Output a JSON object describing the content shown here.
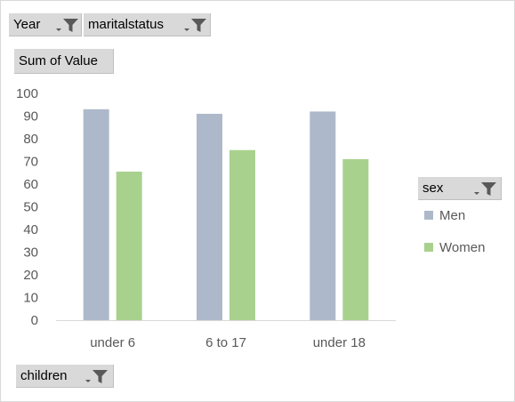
{
  "filters": {
    "year": {
      "label": "Year"
    },
    "marital": {
      "label": "maritalstatus"
    },
    "values": {
      "label": "Sum of Value"
    },
    "legend_field": {
      "label": "sex"
    },
    "axis_field": {
      "label": "children"
    }
  },
  "colors": {
    "Men": "#adb9ca",
    "Women": "#a9d18e",
    "grid": "#d9d9d9",
    "button": "#d9d9d9",
    "icon": "#595959"
  },
  "chart_data": {
    "type": "bar",
    "categories": [
      "under 6",
      "6 to 17",
      "under 18"
    ],
    "series": [
      {
        "name": "Men",
        "values": [
          93,
          91,
          92
        ]
      },
      {
        "name": "Women",
        "values": [
          65.5,
          75,
          71
        ]
      }
    ],
    "ylim": [
      0,
      100
    ],
    "yticks": [
      0,
      10,
      20,
      30,
      40,
      50,
      60,
      70,
      80,
      90,
      100
    ],
    "grid": false,
    "legend": "right",
    "title": "",
    "xlabel": "",
    "ylabel": ""
  }
}
